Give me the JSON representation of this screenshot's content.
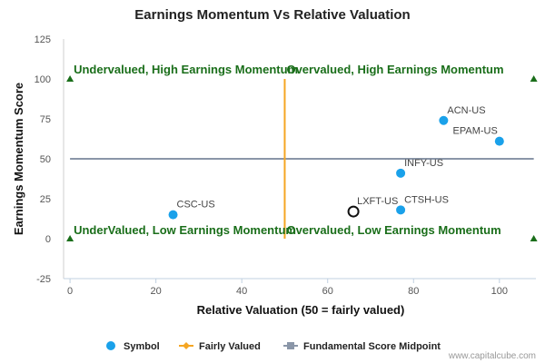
{
  "chart_data": {
    "type": "scatter",
    "title": "Earnings Momentum Vs Relative Valuation",
    "xlabel": "Relative Valuation (50 = fairly valued)",
    "ylabel": "Earnings Momentum Score",
    "xlim": [
      -1.5,
      108.5
    ],
    "ylim": [
      -25,
      125
    ],
    "x_ticks": [
      0,
      20,
      40,
      60,
      80,
      100
    ],
    "y_ticks": [
      -25,
      0,
      25,
      50,
      75,
      100,
      125
    ],
    "legend_position": "bottom",
    "series": [
      {
        "name": "Symbol",
        "color": "#1aa1ea",
        "points": [
          {
            "label": "ACN-US",
            "x": 87,
            "y": 74
          },
          {
            "label": "EPAM-US",
            "x": 100,
            "y": 61
          },
          {
            "label": "INFY-US",
            "x": 77,
            "y": 41
          },
          {
            "label": "CTSH-US",
            "x": 77,
            "y": 18
          },
          {
            "label": "CSC-US",
            "x": 24,
            "y": 15
          },
          {
            "label": "LXFT-US",
            "x": 66,
            "y": 17,
            "highlight": true
          }
        ]
      },
      {
        "name": "Fairly Valued",
        "color": "#f5a623",
        "x": [
          50,
          50
        ],
        "y": [
          0,
          100
        ]
      },
      {
        "name": "Fundamental Score Midpoint",
        "color": "#8a96a8",
        "x": [
          0,
          108
        ],
        "y": [
          50,
          50
        ]
      }
    ],
    "corner_markers": {
      "color": "#1a6e1a",
      "points": [
        {
          "x": 0,
          "y": 100
        },
        {
          "x": 108,
          "y": 100
        },
        {
          "x": 0,
          "y": 0
        },
        {
          "x": 108,
          "y": 0
        }
      ]
    },
    "annotations": [
      {
        "text": "Undervalued, High Earnings Momentum",
        "quadrant": "top-left"
      },
      {
        "text": "Overvalued, High Earnings Momentum",
        "quadrant": "top-right"
      },
      {
        "text": "UnderValued, Low Earnings Momentum",
        "quadrant": "bottom-left"
      },
      {
        "text": "Overvalued, Low Earnings Momentum",
        "quadrant": "bottom-right"
      }
    ]
  },
  "credit": "www.capitalcube.com"
}
